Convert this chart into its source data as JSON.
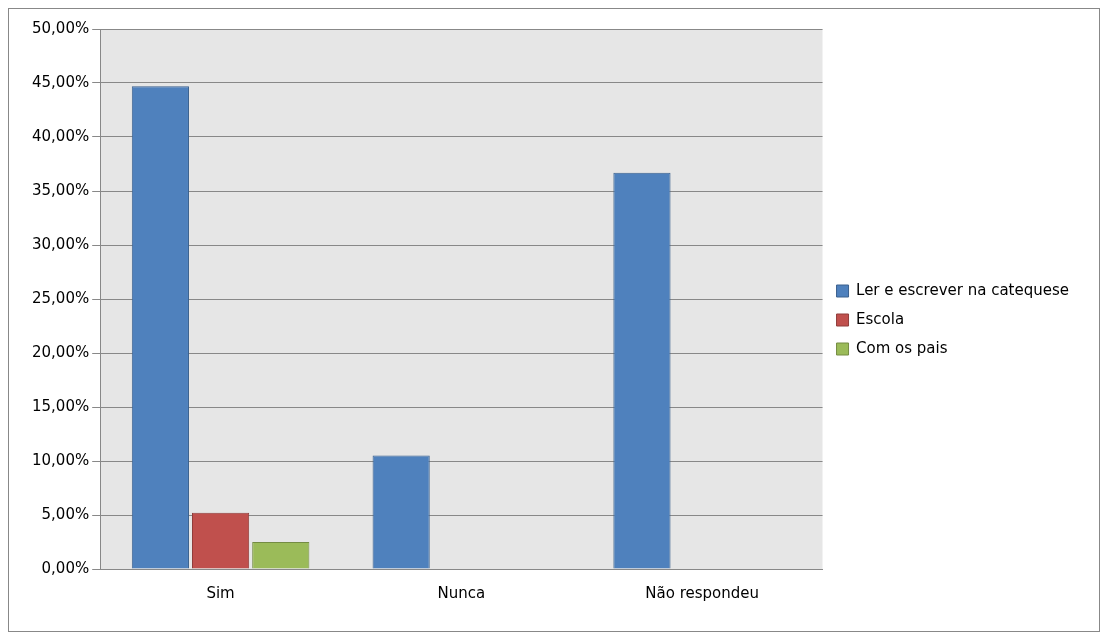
{
  "chart_data": {
    "type": "bar",
    "categories": [
      "Sim",
      "Nunca",
      "Não respondeu"
    ],
    "series": [
      {
        "name": "Ler e escrever na catequese",
        "color": "#4f81bd",
        "values": [
          44.7,
          10.5,
          36.7
        ]
      },
      {
        "name": "Escola",
        "color": "#c0504d",
        "values": [
          5.2,
          null,
          null
        ]
      },
      {
        "name": "Com os pais",
        "color": "#9bbb59",
        "values": [
          2.5,
          null,
          null
        ]
      }
    ],
    "ylim": [
      0,
      50
    ],
    "yticks": [
      {
        "value": 0,
        "label": "0,00%"
      },
      {
        "value": 5,
        "label": "5,00%"
      },
      {
        "value": 10,
        "label": "10,00%"
      },
      {
        "value": 15,
        "label": "15,00%"
      },
      {
        "value": 20,
        "label": "20,00%"
      },
      {
        "value": 25,
        "label": "25,00%"
      },
      {
        "value": 30,
        "label": "30,00%"
      },
      {
        "value": 35,
        "label": "35,00%"
      },
      {
        "value": 40,
        "label": "40,00%"
      },
      {
        "value": 45,
        "label": "45,00%"
      },
      {
        "value": 50,
        "label": "50,00%"
      }
    ],
    "grid": "y",
    "legend": "right"
  }
}
